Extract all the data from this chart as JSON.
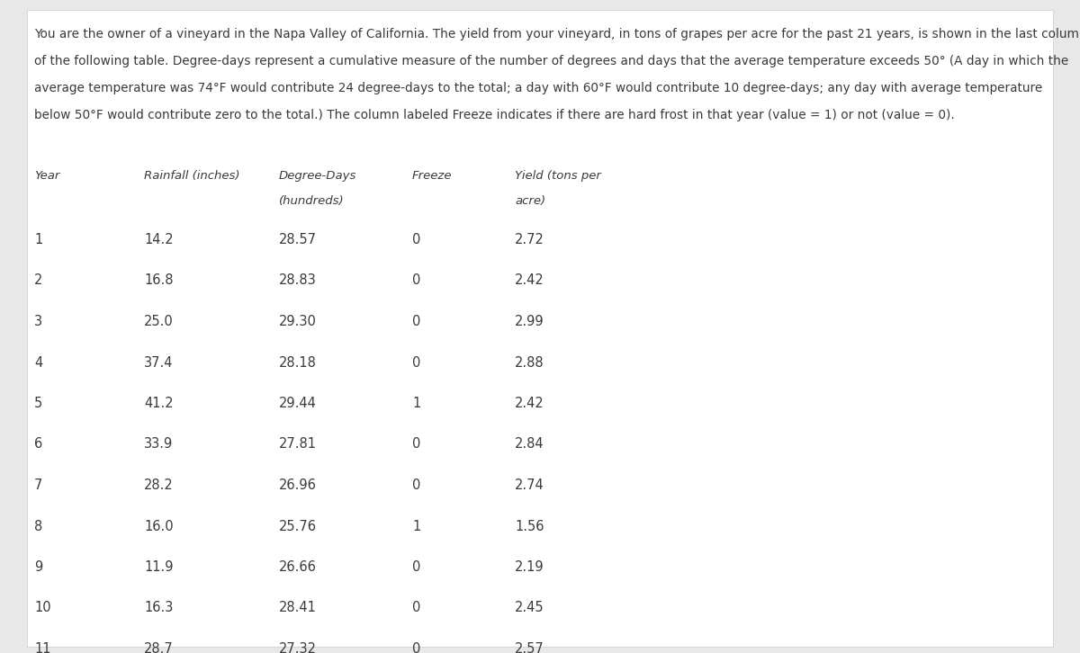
{
  "description_lines": [
    "You are the owner of a vineyard in the Napa Valley of California. The yield from your vineyard, in tons of grapes per acre for the past 21 years, is shown in the last column",
    "of the following table. Degree-days represent a cumulative measure of the number of degrees and days that the average temperature exceeds 50° (A day in which the",
    "average temperature was 74°F would contribute 24 degree-days to the total; a day with 60°F would contribute 10 degree-days; any day with average temperature",
    "below 50°F would contribute zero to the total.) The column labeled Freeze indicates if there are hard frost in that year (value = 1) or not (value = 0)."
  ],
  "col_headers_line1": [
    "Year",
    "Rainfall (inches)",
    "Degree-Days",
    "Freeze",
    "Yield (tons per"
  ],
  "col_headers_line2": [
    "",
    "",
    "(hundreds)",
    "",
    "acre)"
  ],
  "col_x_inches": [
    0.38,
    1.6,
    3.1,
    4.58,
    5.72
  ],
  "rows": [
    [
      1,
      14.2,
      28.57,
      0,
      2.72
    ],
    [
      2,
      16.8,
      28.83,
      0,
      2.42
    ],
    [
      3,
      25.0,
      29.3,
      0,
      2.99
    ],
    [
      4,
      37.4,
      28.18,
      0,
      2.88
    ],
    [
      5,
      41.2,
      29.44,
      1,
      2.42
    ],
    [
      6,
      33.9,
      27.81,
      0,
      2.84
    ],
    [
      7,
      28.2,
      26.96,
      0,
      2.74
    ],
    [
      8,
      16.0,
      25.76,
      1,
      1.56
    ],
    [
      9,
      11.9,
      26.66,
      0,
      2.19
    ],
    [
      10,
      16.3,
      28.41,
      0,
      2.45
    ],
    [
      11,
      28.7,
      27.32,
      0,
      2.57
    ]
  ],
  "background_color": "#ffffff",
  "outer_bg": "#e8e8e8",
  "text_color": "#3a3a3a",
  "header_color": "#3a3a3a",
  "desc_fontsize": 9.8,
  "header_fontsize": 9.5,
  "data_fontsize": 10.5,
  "fig_width": 12.0,
  "fig_height": 7.26,
  "dpi": 100
}
